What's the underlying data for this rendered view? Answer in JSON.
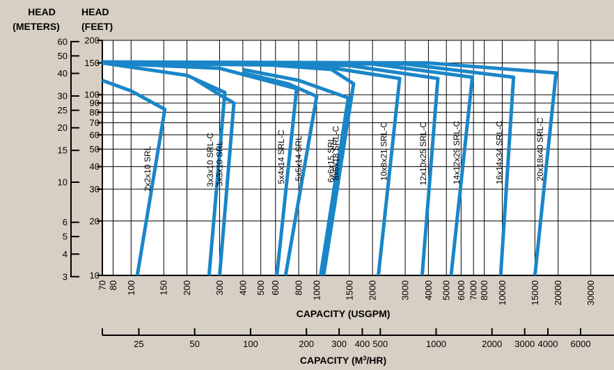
{
  "chart_data": {
    "type": "line",
    "title": "",
    "y_axis_meters": {
      "title_line1": "HEAD",
      "title_line2": "(METERS)",
      "ticks": [
        60,
        50,
        40,
        30,
        25,
        20,
        15,
        10,
        6,
        5,
        4,
        3
      ],
      "scale": "log"
    },
    "y_axis_feet": {
      "title_line1": "HEAD",
      "title_line2": "(FEET)",
      "ticks": [
        200,
        150,
        100,
        90,
        80,
        70,
        60,
        50,
        40,
        30,
        20,
        10
      ],
      "range": [
        10,
        200
      ],
      "scale": "log"
    },
    "x_axis_usgpm": {
      "label": "CAPACITY (USGPM)",
      "ticks": [
        70,
        80,
        100,
        150,
        200,
        300,
        400,
        500,
        600,
        800,
        1000,
        1500,
        2000,
        3000,
        4000,
        5000,
        6000,
        7000,
        8000,
        10000,
        15000,
        20000,
        30000
      ],
      "range": [
        70,
        40000
      ],
      "scale": "log"
    },
    "x_axis_m3hr": {
      "label_pre": "CAPACITY (M",
      "label_sup": "3",
      "label_post": "/HR)",
      "ticks": [
        25,
        50,
        100,
        200,
        300,
        400,
        500,
        1000,
        2000,
        3000,
        4000,
        6000
      ],
      "scale": "log"
    },
    "line_color": "#1a86c8",
    "series": [
      {
        "name": "2x2x10 SRL",
        "points": [
          [
            70,
            120
          ],
          [
            100,
            105
          ],
          [
            152,
            83
          ],
          [
            108,
            10
          ]
        ]
      },
      {
        "name": "3x3x10 SRL-C",
        "points": [
          [
            70,
            150
          ],
          [
            200,
            128
          ],
          [
            320,
            103
          ],
          [
            263,
            10
          ]
        ]
      },
      {
        "name": "3x3x10 SRL",
        "points": [
          [
            220,
            122
          ],
          [
            300,
            100
          ],
          [
            358,
            90
          ],
          [
            300,
            10
          ]
        ]
      },
      {
        "name": "5x4x14 SRL-C",
        "points": [
          [
            70,
            150
          ],
          [
            300,
            140
          ],
          [
            780,
            108
          ],
          [
            610,
            10
          ]
        ]
      },
      {
        "name": "5x5x14 SRL",
        "points": [
          [
            400,
            132
          ],
          [
            700,
            115
          ],
          [
            1000,
            98
          ],
          [
            680,
            10
          ]
        ]
      },
      {
        "name": "6x6x15 SRL",
        "points": [
          [
            400,
            138
          ],
          [
            800,
            120
          ],
          [
            1480,
            96
          ],
          [
            1050,
            10
          ]
        ]
      },
      {
        "name": "8x6x18 SRL-C",
        "points": [
          [
            70,
            150
          ],
          [
            400,
            150
          ],
          [
            1200,
            138
          ],
          [
            1580,
            115
          ],
          [
            1090,
            10
          ]
        ]
      },
      {
        "name": "10x8x21 SRL-C",
        "points": [
          [
            70,
            150
          ],
          [
            1000,
            145
          ],
          [
            2800,
            123
          ],
          [
            2150,
            10
          ]
        ]
      },
      {
        "name": "12x10x25 SRL-C",
        "points": [
          [
            70,
            150
          ],
          [
            1500,
            145
          ],
          [
            4500,
            123
          ],
          [
            3700,
            10
          ]
        ]
      },
      {
        "name": "14x12x29 SRL-C",
        "points": [
          [
            70,
            150
          ],
          [
            2000,
            148
          ],
          [
            6900,
            125
          ],
          [
            5300,
            10
          ]
        ]
      },
      {
        "name": "16x14x34 SRL-C",
        "points": [
          [
            70,
            150
          ],
          [
            3000,
            148
          ],
          [
            11500,
            125
          ],
          [
            9800,
            10
          ]
        ]
      },
      {
        "name": "20x18x40 SRL-C",
        "points": [
          [
            70,
            152
          ],
          [
            4000,
            150
          ],
          [
            19500,
            132
          ],
          [
            15000,
            10
          ]
        ]
      }
    ]
  }
}
